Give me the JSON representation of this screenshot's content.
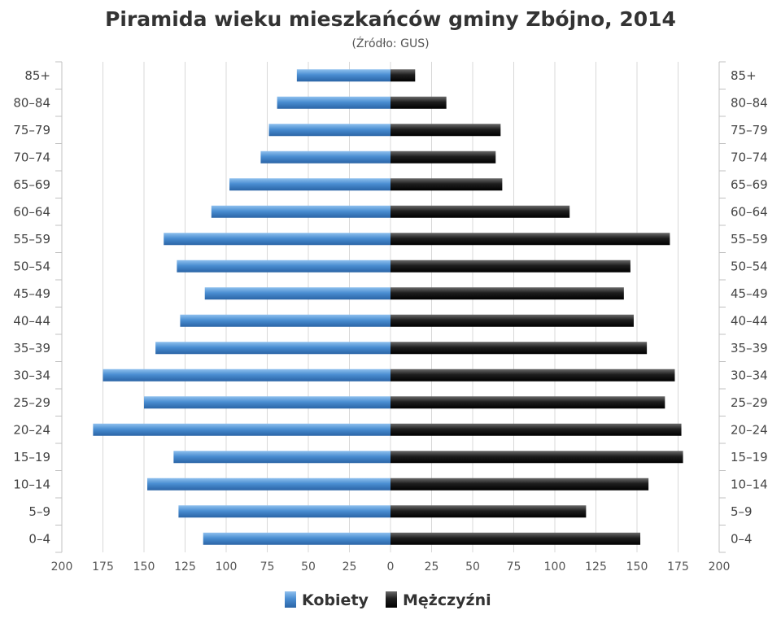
{
  "chart_data": {
    "type": "bar",
    "orientation": "horizontal-population-pyramid",
    "title": "Piramida wieku mieszkańców gminy Zbójno, 2014",
    "subtitle": "(Źródło: GUS)",
    "categories": [
      "85+",
      "80–84",
      "75–79",
      "70–74",
      "65–69",
      "60–64",
      "55–59",
      "50–54",
      "45–49",
      "40–44",
      "35–39",
      "30–34",
      "25–29",
      "20–24",
      "15–19",
      "10–14",
      "5–9",
      "0–4"
    ],
    "series": [
      {
        "name": "Kobiety",
        "side": "left",
        "color": "#3e7ec2",
        "values": [
          57,
          69,
          74,
          79,
          98,
          109,
          138,
          130,
          113,
          128,
          143,
          175,
          150,
          181,
          132,
          148,
          129,
          114
        ]
      },
      {
        "name": "Mężczyźni",
        "side": "right",
        "color": "#1a1a1a",
        "values": [
          15,
          34,
          67,
          64,
          68,
          109,
          170,
          146,
          142,
          148,
          156,
          173,
          167,
          177,
          178,
          157,
          119,
          152
        ]
      }
    ],
    "x_ticks": [
      "200",
      "175",
      "150",
      "125",
      "100",
      "75",
      "50",
      "25",
      "0",
      "25",
      "50",
      "75",
      "100",
      "125",
      "150",
      "175",
      "200"
    ],
    "xlim": [
      -200,
      200
    ],
    "grid": true,
    "legend": "bottom-center"
  }
}
